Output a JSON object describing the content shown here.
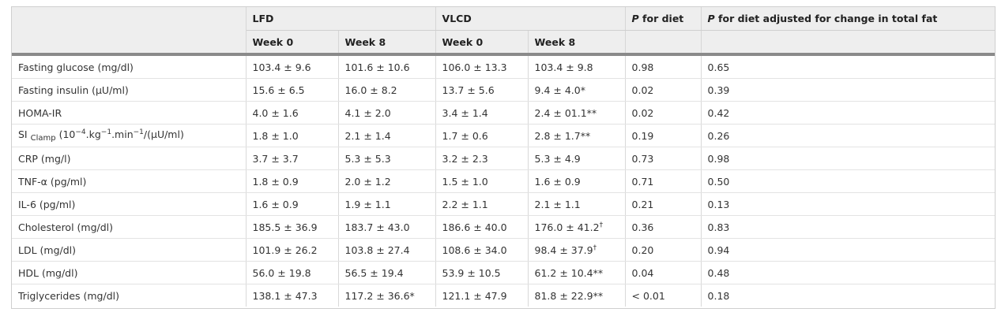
{
  "header": {
    "lfd": "LFD",
    "vlcd": "VLCD",
    "p_diet_letter": "P",
    "p_diet_rest": " for diet",
    "p_adj_letter": "P",
    "p_adj_rest": " for diet adjusted for change in total fat",
    "week0": "Week 0",
    "week8": "Week 8"
  },
  "rows": [
    {
      "label": "Fasting glucose (mg/dl)",
      "lfd_w0": "103.4 ± 9.6",
      "lfd_w8": "101.6 ± 10.6",
      "vlcd_w0": "106.0 ± 13.3",
      "vlcd_w8": "103.4 ± 9.8",
      "vlcd_w8_mark": "",
      "p_diet": "0.98",
      "p_adj": "0.65"
    },
    {
      "label": "Fasting insulin (μU/ml)",
      "lfd_w0": "15.6 ± 6.5",
      "lfd_w8": "16.0 ± 8.2",
      "vlcd_w0": "13.7 ± 5.6",
      "vlcd_w8": "9.4 ± 4.0*",
      "vlcd_w8_mark": "",
      "p_diet": "0.02",
      "p_adj": "0.39"
    },
    {
      "label": "HOMA-IR",
      "lfd_w0": "4.0 ± 1.6",
      "lfd_w8": "4.1 ± 2.0",
      "vlcd_w0": "3.4 ± 1.4",
      "vlcd_w8": "2.4 ± 01.1**",
      "vlcd_w8_mark": "",
      "p_diet": "0.02",
      "p_adj": "0.42"
    },
    {
      "label_si": "SI",
      "label_clamp": "Clamp",
      "label_a": " (10",
      "label_exp1": "−4",
      "label_b": ".kg",
      "label_exp2": "−1",
      "label_c": ".min",
      "label_exp3": "−1",
      "label_d": "/(μU/ml)",
      "lfd_w0": "1.8 ± 1.0",
      "lfd_w8": "2.1 ± 1.4",
      "vlcd_w0": "1.7 ± 0.6",
      "vlcd_w8": "2.8 ± 1.7**",
      "vlcd_w8_mark": "",
      "p_diet": "0.19",
      "p_adj": "0.26"
    },
    {
      "label": "CRP (mg/l)",
      "lfd_w0": "3.7 ± 3.7",
      "lfd_w8": "5.3 ± 5.3",
      "vlcd_w0": "3.2 ± 2.3",
      "vlcd_w8": "5.3 ± 4.9",
      "vlcd_w8_mark": "",
      "p_diet": "0.73",
      "p_adj": "0.98"
    },
    {
      "label": "TNF-α (pg/ml)",
      "lfd_w0": "1.8 ± 0.9",
      "lfd_w8": "2.0 ± 1.2",
      "vlcd_w0": "1.5 ± 1.0",
      "vlcd_w8": "1.6 ± 0.9",
      "vlcd_w8_mark": "",
      "p_diet": "0.71",
      "p_adj": "0.50"
    },
    {
      "label": "IL-6 (pg/ml)",
      "lfd_w0": "1.6 ± 0.9",
      "lfd_w8": "1.9 ± 1.1",
      "vlcd_w0": "2.2 ± 1.1",
      "vlcd_w8": "2.1 ± 1.1",
      "vlcd_w8_mark": "",
      "p_diet": "0.21",
      "p_adj": "0.13"
    },
    {
      "label": "Cholesterol (mg/dl)",
      "lfd_w0": "185.5 ± 36.9",
      "lfd_w8": "183.7 ± 43.0",
      "vlcd_w0": "186.6 ± 40.0",
      "vlcd_w8": "176.0 ± 41.2",
      "vlcd_w8_mark": "†",
      "p_diet": "0.36",
      "p_adj": "0.83"
    },
    {
      "label": "LDL (mg/dl)",
      "lfd_w0": "101.9 ± 26.2",
      "lfd_w8": "103.8 ± 27.4",
      "vlcd_w0": "108.6 ± 34.0",
      "vlcd_w8": "98.4 ± 37.9",
      "vlcd_w8_mark": "†",
      "p_diet": "0.20",
      "p_adj": "0.94"
    },
    {
      "label": "HDL (mg/dl)",
      "lfd_w0": "56.0 ± 19.8",
      "lfd_w8": "56.5 ± 19.4",
      "vlcd_w0": "53.9 ± 10.5",
      "vlcd_w8": "61.2 ± 10.4**",
      "vlcd_w8_mark": "",
      "p_diet": "0.04",
      "p_adj": "0.48"
    },
    {
      "label": "Triglycerides (mg/dl)",
      "lfd_w0": "138.1 ± 47.3",
      "lfd_w8": "117.2 ± 36.6*",
      "vlcd_w0": "121.1 ± 47.9",
      "vlcd_w8": "81.8 ± 22.9**",
      "vlcd_w8_mark": "",
      "p_diet": "< 0.01",
      "p_adj": "0.18"
    }
  ]
}
